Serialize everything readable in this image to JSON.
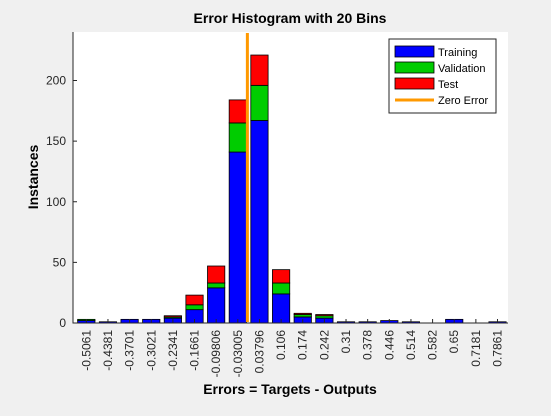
{
  "window": {
    "background": "#f0f0f0"
  },
  "chart_data": {
    "type": "bar",
    "stacked": true,
    "title": "Error Histogram with 20 Bins",
    "xlabel": "Errors = Targets - Outputs",
    "ylabel": "Instances",
    "categories": [
      "-0.5061",
      "-0.4381",
      "-0.3701",
      "-0.3021",
      "-0.2341",
      "-0.1661",
      "-0.09806",
      "-0.03005",
      "0.03796",
      "0.106",
      "0.174",
      "0.242",
      "0.31",
      "0.378",
      "0.446",
      "0.514",
      "0.582",
      "0.65",
      "0.7181",
      "0.7861"
    ],
    "series": [
      {
        "name": "Training",
        "color": "#0000ff",
        "values": [
          2,
          1,
          3,
          3,
          4,
          11,
          29,
          141,
          167,
          24,
          5,
          4,
          1,
          1,
          2,
          1,
          0,
          3,
          0,
          1
        ]
      },
      {
        "name": "Validation",
        "color": "#00cc00",
        "values": [
          1,
          0,
          0,
          0,
          1,
          4,
          4,
          24,
          29,
          9,
          2,
          2,
          0,
          0,
          0,
          0,
          0,
          0,
          0,
          0
        ]
      },
      {
        "name": "Test",
        "color": "#ff0000",
        "values": [
          0,
          0,
          0,
          0,
          1,
          8,
          14,
          19,
          25,
          11,
          1,
          1,
          0,
          0,
          0,
          0,
          0,
          0,
          0,
          0
        ]
      }
    ],
    "zero_error": {
      "name": "Zero Error",
      "color": "#ff9900",
      "x": 0
    },
    "ylim": [
      0,
      240
    ],
    "yticks": [
      0,
      50,
      100,
      150,
      200
    ],
    "grid": false,
    "legend_position": "top-right"
  }
}
